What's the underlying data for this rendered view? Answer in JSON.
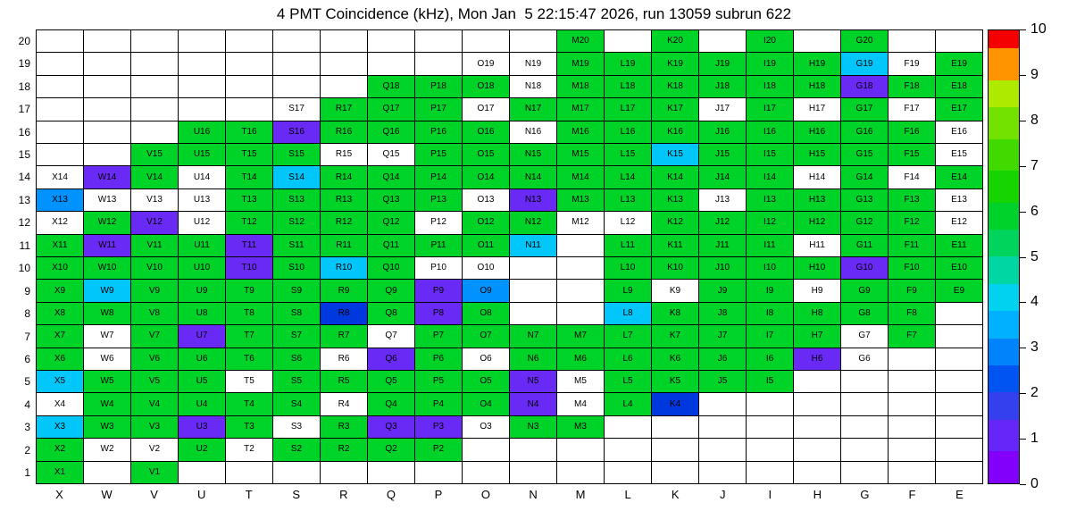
{
  "title": "4 PMT Coincidence (kHz), Mon Jan  5 22:15:47 2026, run 13059 subrun 622",
  "chart_data": {
    "type": "heatmap",
    "title": "4 PMT Coincidence (kHz), Mon Jan  5 22:15:47 2026, run 13059 subrun 622",
    "unit": "kHz",
    "columns": [
      "X",
      "W",
      "V",
      "U",
      "T",
      "S",
      "R",
      "Q",
      "P",
      "O",
      "N",
      "M",
      "L",
      "K",
      "J",
      "I",
      "H",
      "G",
      "F",
      "E"
    ],
    "rows": [
      20,
      19,
      18,
      17,
      16,
      15,
      14,
      13,
      12,
      11,
      10,
      9,
      8,
      7,
      6,
      5,
      4,
      3,
      2,
      1
    ],
    "legend": {
      "g": {
        "color": "#00d327",
        "approx_value": 5.5
      },
      "c": {
        "color": "#00c6fa",
        "approx_value": 4.0
      },
      "lb": {
        "color": "#0092ff",
        "approx_value": 3.0
      },
      "db": {
        "color": "#0038e0",
        "approx_value": 1.8
      },
      "p": {
        "color": "#6a2af5",
        "approx_value": 0.5
      },
      "w": {
        "color": "#ffffff",
        "approx_value": 0
      }
    },
    "cells": [
      [
        "",
        "",
        "",
        "",
        "",
        "",
        "",
        "",
        "",
        "",
        "",
        "g",
        "",
        "g",
        "",
        "g",
        "",
        "g",
        "",
        ""
      ],
      [
        "",
        "",
        "",
        "",
        "",
        "",
        "",
        "",
        "",
        "w",
        "w",
        "g",
        "g",
        "g",
        "g",
        "g",
        "g",
        "c",
        "w",
        "g"
      ],
      [
        "",
        "",
        "",
        "",
        "",
        "",
        "",
        "g",
        "g",
        "g",
        "w",
        "g",
        "g",
        "g",
        "g",
        "g",
        "g",
        "p",
        "g",
        "g"
      ],
      [
        "",
        "",
        "",
        "",
        "",
        "w",
        "g",
        "g",
        "g",
        "w",
        "g",
        "g",
        "g",
        "g",
        "w",
        "g",
        "w",
        "g",
        "w",
        "g"
      ],
      [
        "",
        "",
        "",
        "g",
        "g",
        "p",
        "g",
        "g",
        "g",
        "g",
        "w",
        "g",
        "g",
        "g",
        "g",
        "g",
        "g",
        "g",
        "g",
        "w"
      ],
      [
        "",
        "",
        "g",
        "g",
        "g",
        "g",
        "w",
        "w",
        "g",
        "g",
        "g",
        "g",
        "g",
        "c",
        "g",
        "g",
        "g",
        "g",
        "g",
        "w"
      ],
      [
        "w",
        "p",
        "g",
        "w",
        "g",
        "c",
        "g",
        "g",
        "g",
        "g",
        "g",
        "g",
        "g",
        "g",
        "g",
        "g",
        "w",
        "g",
        "w",
        "g"
      ],
      [
        "lb",
        "w",
        "w",
        "w",
        "g",
        "g",
        "g",
        "g",
        "g",
        "w",
        "p",
        "g",
        "g",
        "g",
        "w",
        "g",
        "g",
        "g",
        "g",
        "w"
      ],
      [
        "w",
        "g",
        "p",
        "w",
        "g",
        "g",
        "g",
        "g",
        "w",
        "g",
        "g",
        "w",
        "w",
        "g",
        "g",
        "g",
        "g",
        "g",
        "g",
        "w"
      ],
      [
        "g",
        "p",
        "g",
        "g",
        "p",
        "g",
        "g",
        "g",
        "g",
        "g",
        "c",
        "",
        "g",
        "g",
        "g",
        "g",
        "w",
        "g",
        "g",
        "g"
      ],
      [
        "g",
        "g",
        "g",
        "g",
        "p",
        "g",
        "c",
        "g",
        "w",
        "w",
        "",
        "",
        "g",
        "g",
        "g",
        "g",
        "g",
        "p",
        "g",
        "g"
      ],
      [
        "g",
        "c",
        "g",
        "g",
        "g",
        "g",
        "g",
        "g",
        "p",
        "lb",
        "",
        "",
        "g",
        "w",
        "g",
        "g",
        "w",
        "g",
        "g",
        "g"
      ],
      [
        "g",
        "g",
        "g",
        "g",
        "g",
        "g",
        "db",
        "g",
        "p",
        "g",
        "",
        "",
        "c",
        "g",
        "g",
        "g",
        "g",
        "g",
        "g",
        ""
      ],
      [
        "g",
        "w",
        "g",
        "p",
        "g",
        "g",
        "g",
        "w",
        "g",
        "g",
        "g",
        "g",
        "g",
        "g",
        "g",
        "g",
        "g",
        "w",
        "g",
        ""
      ],
      [
        "g",
        "w",
        "g",
        "g",
        "g",
        "g",
        "w",
        "p",
        "g",
        "w",
        "g",
        "g",
        "g",
        "g",
        "g",
        "g",
        "p",
        "w",
        "",
        ""
      ],
      [
        "c",
        "g",
        "g",
        "g",
        "w",
        "g",
        "g",
        "g",
        "g",
        "g",
        "p",
        "w",
        "g",
        "g",
        "g",
        "g",
        "",
        "",
        "",
        ""
      ],
      [
        "w",
        "g",
        "g",
        "g",
        "g",
        "g",
        "w",
        "g",
        "g",
        "g",
        "p",
        "w",
        "g",
        "db",
        "",
        "",
        "",
        "",
        "",
        ""
      ],
      [
        "c",
        "g",
        "g",
        "p",
        "g",
        "w",
        "g",
        "p",
        "p",
        "w",
        "g",
        "g",
        "",
        "",
        "",
        "",
        "",
        "",
        "",
        ""
      ],
      [
        "g",
        "w",
        "w",
        "g",
        "w",
        "g",
        "g",
        "g",
        "g",
        "",
        "",
        "",
        "",
        "",
        "",
        "",
        "",
        "",
        "",
        ""
      ],
      [
        "g",
        "",
        "g",
        "",
        "",
        "",
        "",
        "",
        "",
        "",
        "",
        "",
        "",
        "",
        "",
        "",
        "",
        "",
        "",
        ""
      ]
    ],
    "colorbar": {
      "min": 0,
      "max": 10,
      "ticks": [
        10,
        9,
        8,
        7,
        6,
        5,
        4,
        3,
        2,
        1,
        0
      ],
      "bands": [
        {
          "to": 0.7,
          "color": "#8200fa"
        },
        {
          "to": 1.4,
          "color": "#6526f7"
        },
        {
          "to": 2.0,
          "color": "#3440ee"
        },
        {
          "to": 2.6,
          "color": "#0055f2"
        },
        {
          "to": 3.2,
          "color": "#0083fb"
        },
        {
          "to": 3.8,
          "color": "#00b1ff"
        },
        {
          "to": 4.4,
          "color": "#00d2f0"
        },
        {
          "to": 5.0,
          "color": "#00d6a4"
        },
        {
          "to": 5.6,
          "color": "#00d45c"
        },
        {
          "to": 6.2,
          "color": "#00d22b"
        },
        {
          "to": 6.9,
          "color": "#16d400"
        },
        {
          "to": 7.6,
          "color": "#40da00"
        },
        {
          "to": 8.3,
          "color": "#74e200"
        },
        {
          "to": 8.9,
          "color": "#aeea00"
        },
        {
          "to": 9.6,
          "color": "#ff9400"
        },
        {
          "to": 10,
          "color": "#f40000"
        }
      ]
    }
  }
}
